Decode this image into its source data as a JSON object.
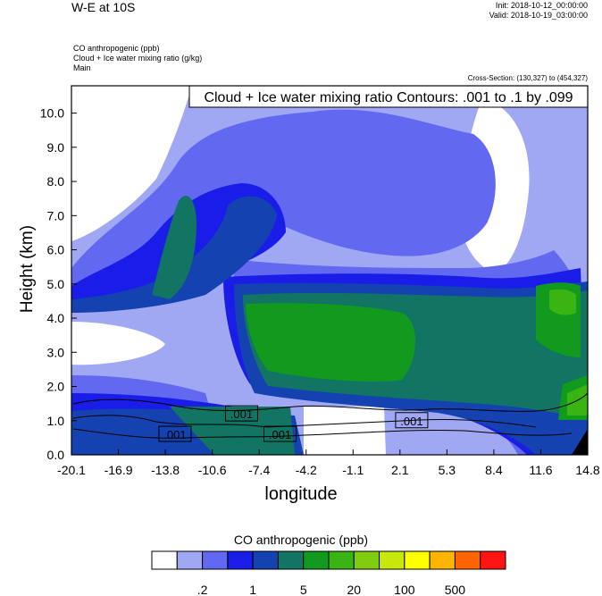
{
  "header": {
    "title": "W-E at 10S",
    "init": "Init: 2018-10-12_00:00:00",
    "valid": "Valid: 2018-10-19_03:00:00",
    "subtitle_lines": [
      "CO anthropogenic   (ppb)",
      "Cloud + Ice water mixing ratio   (g/kg)",
      "Main"
    ],
    "cross_section": "Cross-Section: (130,327) to (454,327)"
  },
  "chart_data": {
    "type": "heatmap",
    "contour_title": "Cloud + Ice water mixing ratio Contours: .001 to .1 by .099",
    "xlabel": "longitude",
    "ylabel": "Height (km)",
    "x_ticks": [
      "-20.1",
      "-16.9",
      "-13.8",
      "-10.6",
      "-7.4",
      "-4.2",
      "-1.1",
      "2.1",
      "5.3",
      "8.4",
      "11.6",
      "14.8"
    ],
    "xlim": [
      -20.1,
      14.8
    ],
    "y_ticks": [
      "0.0",
      "1.0",
      "2.0",
      "3.0",
      "4.0",
      "5.0",
      "6.0",
      "7.0",
      "8.0",
      "9.0",
      "10.0"
    ],
    "ylim": [
      0,
      10.8
    ],
    "contour_labels": [
      {
        "text": ".001",
        "x": -8.6,
        "y": 1.2
      },
      {
        "text": ".001",
        "x": -13.1,
        "y": 0.6
      },
      {
        "text": ".001",
        "x": -6.0,
        "y": 0.6
      },
      {
        "text": ".001",
        "x": 2.9,
        "y": 1.0
      }
    ],
    "colorbar": {
      "title": "CO anthropogenic  (ppb)",
      "colors": [
        "#ffffff",
        "#a0a8f4",
        "#6268ef",
        "#1a1ce8",
        "#1442b0",
        "#127462",
        "#119a1e",
        "#3ab413",
        "#80cc10",
        "#c8e80c",
        "#ffff00",
        "#ffb400",
        "#ff6400",
        "#ff1414"
      ],
      "tick_labels": [
        ".2",
        "1",
        "5",
        "20",
        "100",
        "500"
      ]
    }
  }
}
